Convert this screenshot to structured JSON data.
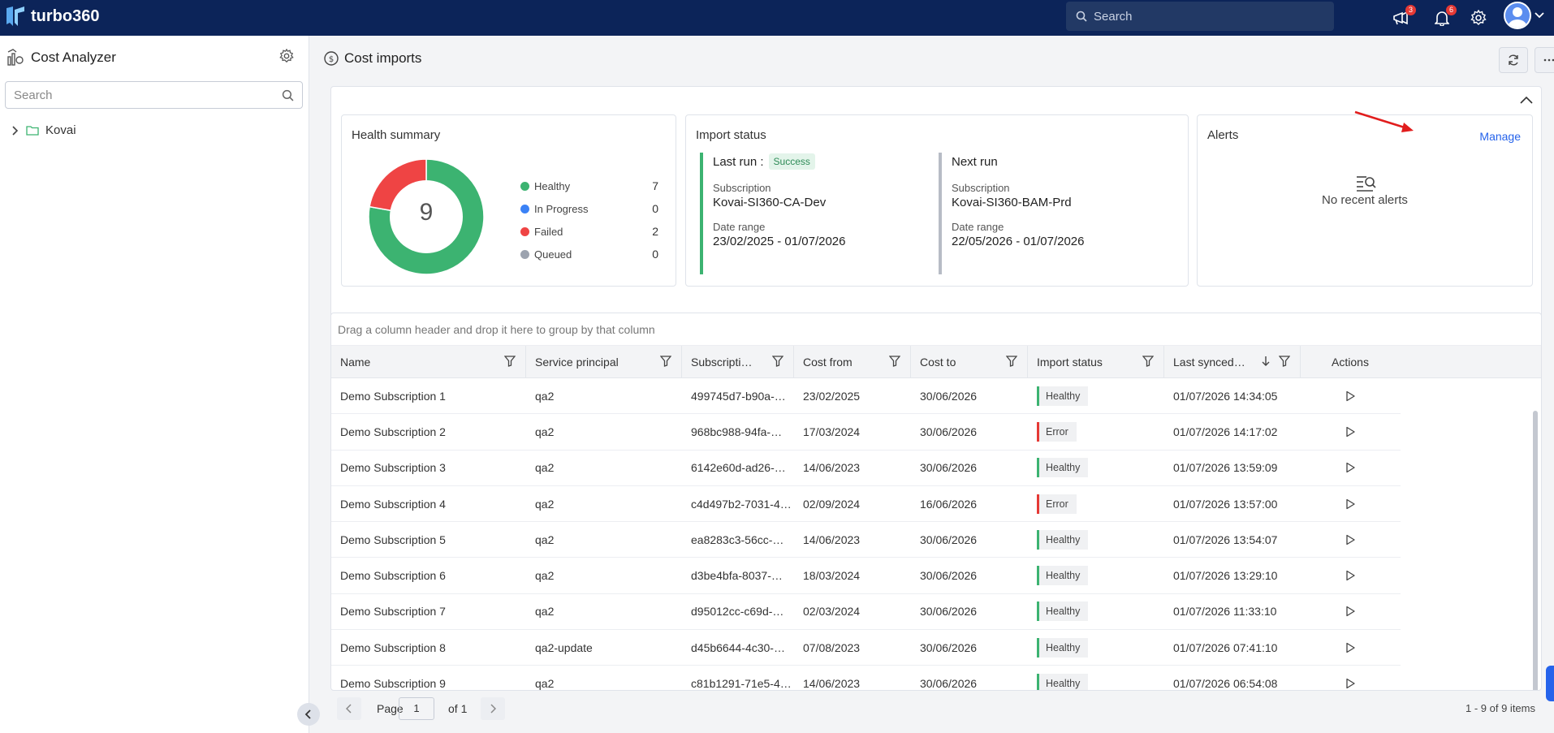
{
  "app": {
    "brand": "turbo360"
  },
  "topbar": {
    "search_placeholder": "Search",
    "announcements_count": "3",
    "notifications_count": "6"
  },
  "sidebar": {
    "title": "Cost Analyzer",
    "search_placeholder": "Search",
    "tree": [
      {
        "label": "Kovai"
      }
    ]
  },
  "page": {
    "title": "Cost imports"
  },
  "health": {
    "title": "Health summary",
    "total": "9",
    "items": [
      {
        "label": "Healthy",
        "value": 7,
        "color": "#3cb371"
      },
      {
        "label": "In Progress",
        "value": 0,
        "color": "#3b82f6"
      },
      {
        "label": "Failed",
        "value": 2,
        "color": "#ef4444"
      },
      {
        "label": "Queued",
        "value": 0,
        "color": "#9ca3af"
      }
    ]
  },
  "import_status": {
    "title": "Import status",
    "last_run": {
      "label": "Last run :",
      "status": "Success",
      "subscription_label": "Subscription",
      "subscription": "Kovai-SI360-CA-Dev",
      "date_range_label": "Date range",
      "date_range": "23/02/2025 - 01/07/2026"
    },
    "next_run": {
      "label": "Next run",
      "subscription_label": "Subscription",
      "subscription": "Kovai-SI360-BAM-Prd",
      "date_range_label": "Date range",
      "date_range": "22/05/2026 - 01/07/2026"
    }
  },
  "alerts": {
    "title": "Alerts",
    "manage": "Manage",
    "empty": "No recent alerts"
  },
  "grid": {
    "group_hint": "Drag a column header and drop it here to group by that column",
    "columns": [
      "Name",
      "Service principal",
      "Subscripti…",
      "Cost from",
      "Cost to",
      "Import status",
      "Last synced…",
      "Actions"
    ],
    "rows": [
      {
        "name": "Demo Subscription 1",
        "sp": "qa2",
        "sub": "499745d7-b90a-…",
        "from": "23/02/2025",
        "to": "30/06/2026",
        "status": "Healthy",
        "synced": "01/07/2026 14:34:05"
      },
      {
        "name": "Demo Subscription 2",
        "sp": "qa2",
        "sub": "968bc988-94fa-…",
        "from": "17/03/2024",
        "to": "30/06/2026",
        "status": "Error",
        "synced": "01/07/2026 14:17:02"
      },
      {
        "name": "Demo Subscription 3",
        "sp": "qa2",
        "sub": "6142e60d-ad26-…",
        "from": "14/06/2023",
        "to": "30/06/2026",
        "status": "Healthy",
        "synced": "01/07/2026 13:59:09"
      },
      {
        "name": "Demo Subscription 4",
        "sp": "qa2",
        "sub": "c4d497b2-7031-4…",
        "from": "02/09/2024",
        "to": "16/06/2026",
        "status": "Error",
        "synced": "01/07/2026 13:57:00"
      },
      {
        "name": "Demo Subscription 5",
        "sp": "qa2",
        "sub": "ea8283c3-56cc-…",
        "from": "14/06/2023",
        "to": "30/06/2026",
        "status": "Healthy",
        "synced": "01/07/2026 13:54:07"
      },
      {
        "name": "Demo Subscription 6",
        "sp": "qa2",
        "sub": "d3be4bfa-8037-…",
        "from": "18/03/2024",
        "to": "30/06/2026",
        "status": "Healthy",
        "synced": "01/07/2026 13:29:10"
      },
      {
        "name": "Demo Subscription 7",
        "sp": "qa2",
        "sub": "d95012cc-c69d-…",
        "from": "02/03/2024",
        "to": "30/06/2026",
        "status": "Healthy",
        "synced": "01/07/2026 11:33:10"
      },
      {
        "name": "Demo Subscription 8",
        "sp": "qa2-update",
        "sub": "d45b6644-4c30-…",
        "from": "07/08/2023",
        "to": "30/06/2026",
        "status": "Healthy",
        "synced": "01/07/2026 07:41:10"
      },
      {
        "name": "Demo Subscription 9",
        "sp": "qa2",
        "sub": "c81b1291-71e5-4…",
        "from": "14/06/2023",
        "to": "30/06/2026",
        "status": "Healthy",
        "synced": "01/07/2026 06:54:08"
      }
    ]
  },
  "pager": {
    "page_label": "Page",
    "page": "1",
    "of_label": "of 1",
    "info": "1 - 9 of 9 items"
  }
}
